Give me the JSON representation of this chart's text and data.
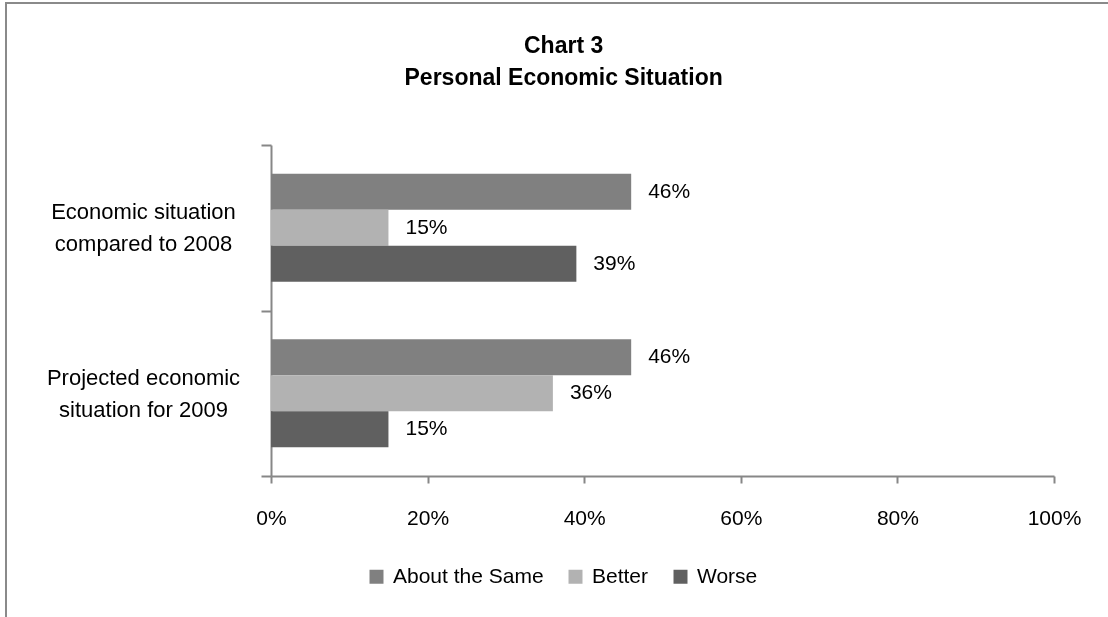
{
  "chart_data": {
    "type": "bar",
    "orientation": "horizontal",
    "title": "Chart 3",
    "subtitle": "Personal Economic Situation",
    "categories": [
      "Economic situation compared to 2008",
      "Projected economic situation for 2009"
    ],
    "series": [
      {
        "name": "About the Same",
        "color": "#808080",
        "values": [
          46,
          46
        ],
        "value_labels": [
          "46%",
          "46%"
        ]
      },
      {
        "name": "Better",
        "color": "#b2b2b2",
        "values": [
          15,
          36
        ],
        "value_labels": [
          "15%",
          "36%"
        ]
      },
      {
        "name": "Worse",
        "color": "#606060",
        "values": [
          39,
          15
        ],
        "value_labels": [
          "39%",
          "15%"
        ]
      }
    ],
    "xlim": [
      0,
      100
    ],
    "xticks": [
      {
        "value": 0,
        "label": "0%"
      },
      {
        "value": 20,
        "label": "20%"
      },
      {
        "value": 40,
        "label": "40%"
      },
      {
        "value": 60,
        "label": "60%"
      },
      {
        "value": 80,
        "label": "80%"
      },
      {
        "value": 100,
        "label": "100%"
      }
    ],
    "grid": false,
    "legend": "bottom"
  }
}
